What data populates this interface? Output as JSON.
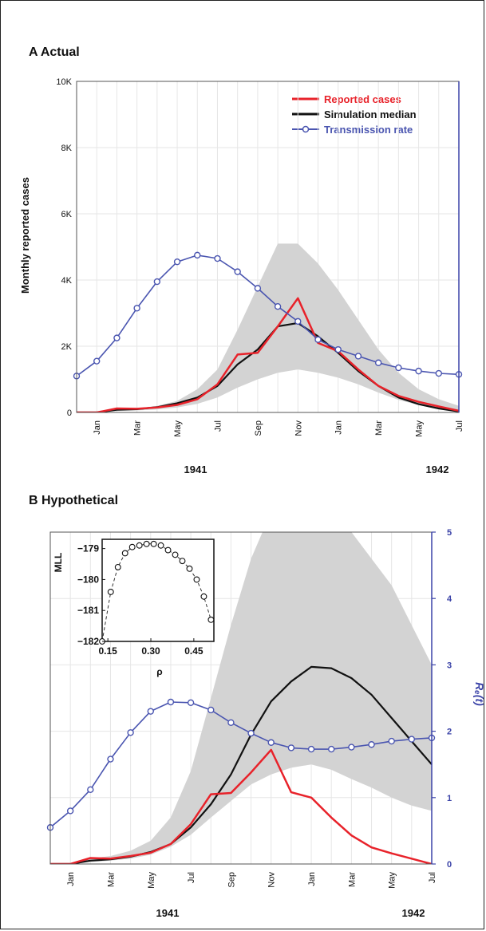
{
  "panels": [
    {
      "title": "A  Actual",
      "ylabel": "Monthly reported cases",
      "yticks": [
        "0",
        "2K",
        "4K",
        "6K",
        "8K",
        "10K"
      ],
      "months": [
        "Jan",
        "Mar",
        "May",
        "Jul",
        "Sep",
        "Nov",
        "Jan",
        "Mar",
        "May",
        "Jul"
      ],
      "years": [
        "1941",
        "1942"
      ],
      "legend": [
        "Reported cases",
        "Simulation median",
        "Transmission rate"
      ]
    },
    {
      "title": "B  Hypothetical",
      "right_ticks": [
        "0",
        "1",
        "2",
        "3",
        "4",
        "5"
      ],
      "right_label": "Rₑ(t)",
      "months": [
        "Jan",
        "Mar",
        "May",
        "Jul",
        "Sep",
        "Nov",
        "Jan",
        "Mar",
        "May",
        "Jul"
      ],
      "years": [
        "1941",
        "1942"
      ],
      "inset": {
        "ylabel": "MLL",
        "xlabel": "ρ",
        "yticks": [
          "−179",
          "−180",
          "−181",
          "−182"
        ],
        "xticks": [
          "0.15",
          "0.30",
          "0.45"
        ]
      }
    }
  ],
  "colors": {
    "reported": "#e8222a",
    "median": "#111111",
    "transmission": "#4a55b0",
    "band": "#d3d3d3",
    "axis_right": "#3c44a8"
  },
  "chart_data": [
    {
      "type": "line",
      "title": "A  Actual",
      "ylabel": "Monthly reported cases",
      "x": [
        "Dec 1940",
        "Jan 1941",
        "Feb 1941",
        "Mar 1941",
        "Apr 1941",
        "May 1941",
        "Jun 1941",
        "Jul 1941",
        "Aug 1941",
        "Sep 1941",
        "Oct 1941",
        "Nov 1941",
        "Dec 1941",
        "Jan 1942",
        "Feb 1942",
        "Mar 1942",
        "Apr 1942",
        "May 1942",
        "Jun 1942",
        "Jul 1942"
      ],
      "ylim": [
        0,
        10000
      ],
      "series": [
        {
          "name": "Reported cases",
          "values": [
            0,
            0,
            120,
            110,
            150,
            230,
            400,
            850,
            1750,
            1800,
            2600,
            3450,
            2100,
            1850,
            1300,
            800,
            500,
            320,
            180,
            50
          ]
        },
        {
          "name": "Simulation median",
          "values": [
            0,
            0,
            80,
            100,
            160,
            280,
            450,
            800,
            1450,
            1900,
            2600,
            2700,
            2300,
            1800,
            1250,
            800,
            450,
            250,
            120,
            30
          ]
        },
        {
          "name": "Transmission rate",
          "values": [
            1100,
            1550,
            2250,
            3150,
            3950,
            4550,
            4750,
            4650,
            4250,
            3750,
            3200,
            2750,
            2200,
            1900,
            1700,
            1500,
            1350,
            1250,
            1180,
            1150
          ]
        }
      ],
      "band": {
        "upper": [
          0,
          0,
          100,
          120,
          200,
          350,
          700,
          1300,
          2500,
          3800,
          5100,
          5100,
          4500,
          3700,
          2800,
          1900,
          1200,
          700,
          400,
          200
        ],
        "lower": [
          0,
          0,
          40,
          60,
          90,
          150,
          260,
          450,
          750,
          1000,
          1200,
          1300,
          1200,
          1050,
          850,
          600,
          380,
          220,
          100,
          20
        ]
      },
      "legend_position": "top-right",
      "grid": true
    },
    {
      "type": "line",
      "title": "B  Hypothetical",
      "ylabel_right": "Rₑ(t)",
      "x": [
        "Dec 1940",
        "Jan 1941",
        "Feb 1941",
        "Mar 1941",
        "Apr 1941",
        "May 1941",
        "Jun 1941",
        "Jul 1941",
        "Aug 1941",
        "Sep 1941",
        "Oct 1941",
        "Nov 1941",
        "Dec 1941",
        "Jan 1942",
        "Feb 1942",
        "Mar 1942",
        "Apr 1942",
        "May 1942",
        "Jun 1942",
        "Jul 1942"
      ],
      "ylim_right": [
        0,
        5
      ],
      "series": [
        {
          "name": "Reported cases",
          "values": [
            0,
            0,
            0.09,
            0.08,
            0.12,
            0.17,
            0.3,
            0.6,
            1.05,
            1.07,
            1.38,
            1.72,
            1.08,
            1.0,
            0.7,
            0.43,
            0.25,
            0.16,
            0.08,
            0.0
          ]
        },
        {
          "name": "Simulation median",
          "values": [
            0,
            0,
            0.05,
            0.07,
            0.11,
            0.18,
            0.3,
            0.55,
            0.9,
            1.35,
            1.95,
            2.45,
            2.75,
            2.97,
            2.95,
            2.8,
            2.55,
            2.2,
            1.85,
            1.5
          ]
        },
        {
          "name": "Rₑ(t)",
          "values": [
            0.55,
            0.8,
            1.12,
            1.58,
            1.98,
            2.3,
            2.44,
            2.43,
            2.32,
            2.13,
            1.97,
            1.83,
            1.75,
            1.73,
            1.73,
            1.76,
            1.8,
            1.85,
            1.88,
            1.9
          ]
        }
      ],
      "band": {
        "upper": [
          0,
          0,
          0.08,
          0.12,
          0.2,
          0.35,
          0.7,
          1.4,
          2.5,
          3.6,
          4.6,
          5.3,
          5.5,
          5.5,
          5.5,
          5.0,
          4.6,
          4.2,
          3.6,
          3.0
        ],
        "lower": [
          0,
          0,
          0.03,
          0.05,
          0.08,
          0.14,
          0.26,
          0.44,
          0.7,
          0.95,
          1.2,
          1.35,
          1.45,
          1.5,
          1.42,
          1.28,
          1.15,
          1.0,
          0.88,
          0.8
        ]
      },
      "grid": true,
      "inset": {
        "type": "scatter",
        "xlabel": "ρ",
        "ylabel": "MLL",
        "xlim": [
          0.13,
          0.52
        ],
        "ylim": [
          -182,
          -178.7
        ],
        "x": [
          0.13,
          0.16,
          0.185,
          0.21,
          0.235,
          0.26,
          0.285,
          0.31,
          0.335,
          0.36,
          0.385,
          0.41,
          0.435,
          0.46,
          0.485,
          0.51
        ],
        "y": [
          -182.0,
          -180.4,
          -179.6,
          -179.15,
          -178.95,
          -178.9,
          -178.85,
          -178.85,
          -178.9,
          -179.05,
          -179.2,
          -179.4,
          -179.65,
          -180.0,
          -180.55,
          -181.3
        ]
      }
    }
  ]
}
